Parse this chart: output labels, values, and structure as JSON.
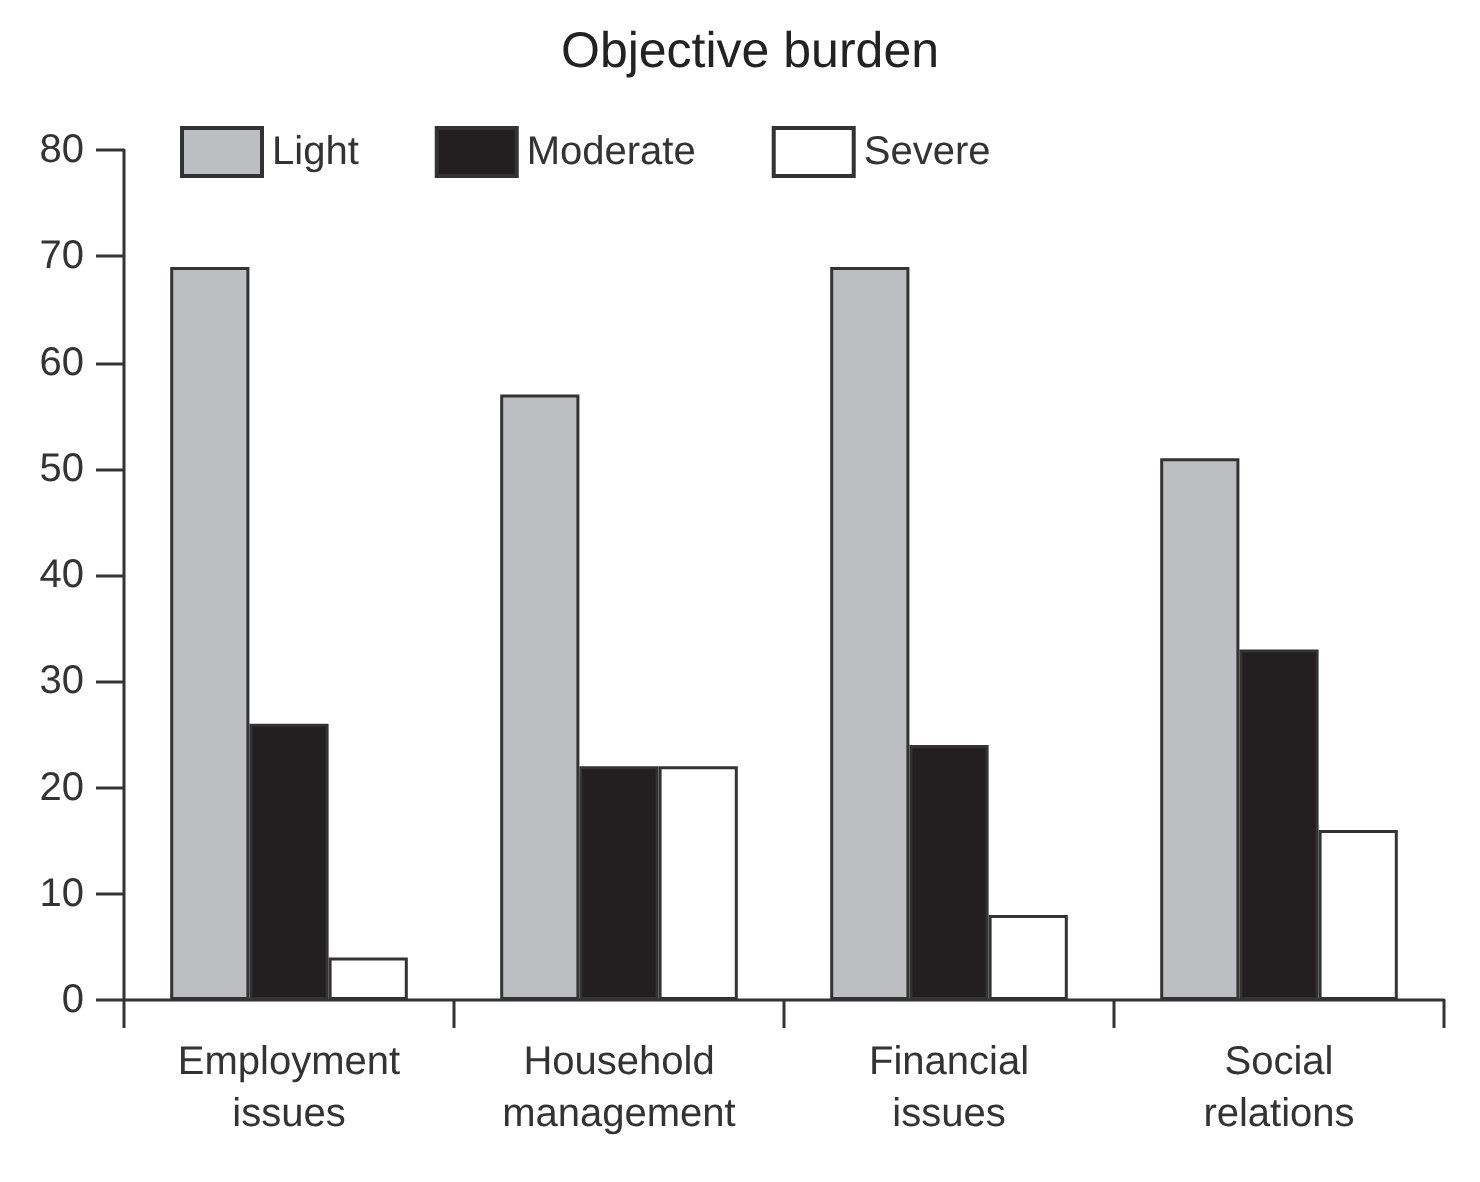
{
  "chart_data": {
    "type": "bar",
    "title": "Objective burden",
    "categories": [
      "Employment issues",
      "Household management",
      "Financial issues",
      "Social relations"
    ],
    "series": [
      {
        "name": "Light",
        "color": "#bdbec2",
        "values": [
          69,
          57,
          69,
          51
        ]
      },
      {
        "name": "Moderate",
        "color": "#231f20",
        "values": [
          26,
          22,
          24,
          33
        ]
      },
      {
        "name": "Severe",
        "color": "#ffffff",
        "values": [
          4,
          22,
          8,
          16
        ]
      }
    ],
    "ylim": [
      0,
      80
    ],
    "yticks": [
      0,
      10,
      20,
      30,
      40,
      50,
      60,
      70,
      80
    ],
    "grid": false,
    "legend": "top left"
  }
}
